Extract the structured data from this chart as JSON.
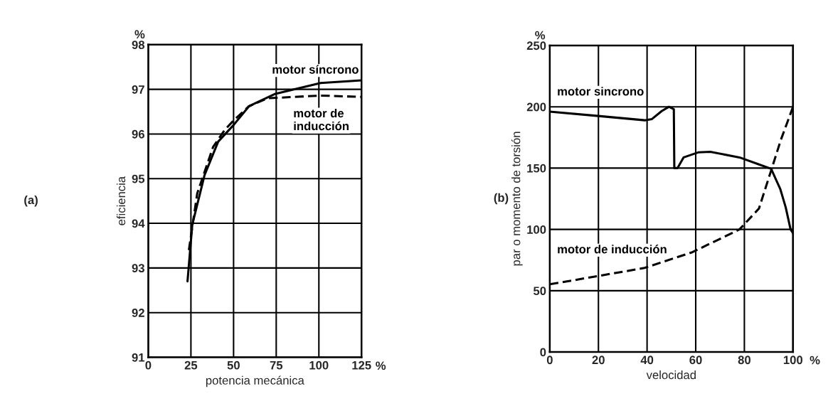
{
  "chart_data": [
    {
      "type": "line",
      "xlabel": "potencia mecánica",
      "ylabel": "eficiencia",
      "xlim": [
        0,
        125
      ],
      "xticks": [
        0,
        25,
        50,
        75,
        100,
        125
      ],
      "ylim": [
        91,
        98
      ],
      "yticks": [
        91,
        92,
        93,
        94,
        95,
        96,
        97,
        98
      ],
      "grid": true,
      "annotations": [
        "(a)",
        "%",
        "%"
      ],
      "series": [
        {
          "name": "motor síncrono",
          "color": "#000000",
          "line_style": "solid",
          "x": [
            23,
            25.8,
            33,
            41,
            50,
            59,
            74.5,
            101,
            125
          ],
          "values": [
            92.7,
            93.97,
            95.08,
            95.83,
            96.2,
            96.62,
            96.9,
            97.14,
            97.2
          ]
        },
        {
          "name": "motor de\ninducción",
          "color": "#000000",
          "line_style": "dashed",
          "x": [
            23.8,
            28.7,
            38,
            45,
            50,
            59,
            70,
            101,
            125
          ],
          "values": [
            93.4,
            94.67,
            95.71,
            96.1,
            96.3,
            96.62,
            96.8,
            96.86,
            96.83
          ]
        }
      ]
    },
    {
      "type": "line",
      "xlabel": "velocidad",
      "ylabel": "par o momento de torsión",
      "xlim": [
        0,
        100
      ],
      "xticks": [
        0,
        20,
        40,
        60,
        80,
        100
      ],
      "ylim": [
        0,
        250
      ],
      "yticks": [
        0,
        50,
        100,
        150,
        200,
        250
      ],
      "grid": true,
      "annotations": [
        "(b)",
        "%",
        "%"
      ],
      "series": [
        {
          "name": "motor sincrono",
          "color": "#000000",
          "line_style": "solid",
          "x": [
            0,
            20,
            39,
            42,
            46,
            49,
            51,
            51.2,
            52.5,
            55,
            61,
            66,
            78,
            86,
            91,
            94.8,
            97,
            99,
            100
          ],
          "values": [
            196,
            192.5,
            189,
            190,
            196.5,
            200,
            198,
            150,
            150,
            158.7,
            162.8,
            163.3,
            158.7,
            153,
            149.4,
            132.7,
            118,
            100,
            97
          ]
        },
        {
          "name": "motor de inducción",
          "color": "#000000",
          "line_style": "dashed",
          "x": [
            0,
            20,
            39,
            58.6,
            78,
            86,
            91,
            95,
            100
          ],
          "values": [
            55.2,
            62,
            68.6,
            81.4,
            100,
            117,
            148,
            173,
            200
          ]
        }
      ]
    }
  ]
}
